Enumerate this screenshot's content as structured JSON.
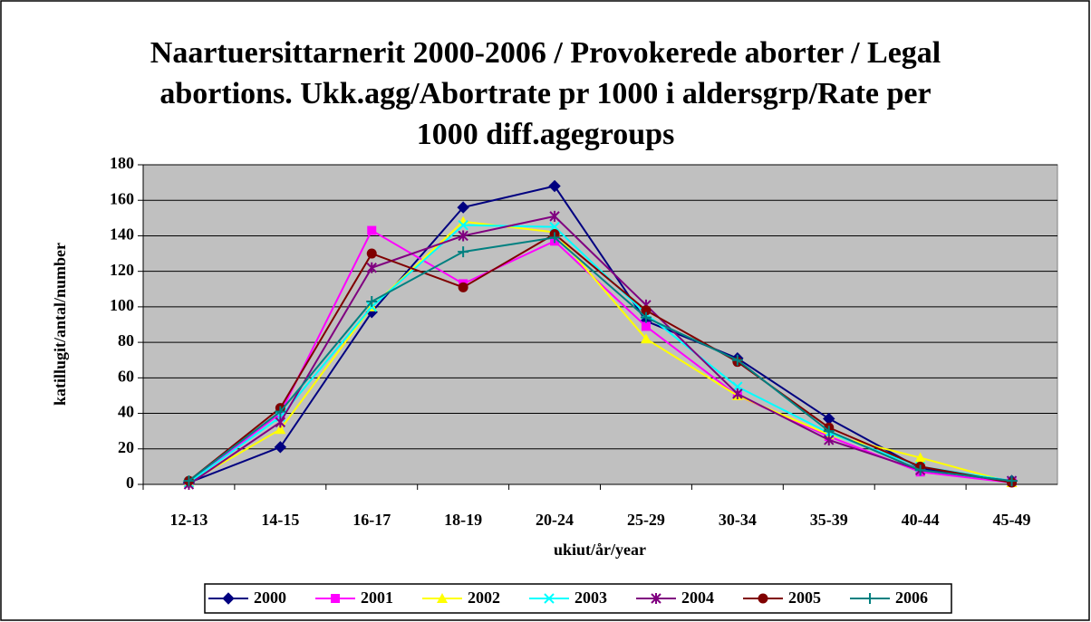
{
  "chart_data": {
    "type": "line",
    "title": "Naartuersittarnerit 2000-2006 / Provokerede aborter / Legal abortions. Ukk.agg/Abortrate pr 1000 i aldersgrp/Rate per 1000 diff.agegroups",
    "xlabel": "ukiut/år/year",
    "ylabel": "katillugit/antal/number",
    "categories": [
      "12-13",
      "14-15",
      "16-17",
      "18-19",
      "20-24",
      "25-29",
      "30-34",
      "35-39",
      "40-44",
      "45-49"
    ],
    "ylim": [
      0,
      180
    ],
    "yticks": [
      0,
      20,
      40,
      60,
      80,
      100,
      120,
      140,
      160,
      180
    ],
    "grid": true,
    "legend": "bottom",
    "series": [
      {
        "name": "2000",
        "color": "#000080",
        "marker": "diamond",
        "values": [
          1,
          21,
          97,
          156,
          168,
          92,
          71,
          37,
          9,
          2
        ]
      },
      {
        "name": "2001",
        "color": "#ff00ff",
        "marker": "square",
        "values": [
          1,
          40,
          143,
          113,
          137,
          89,
          50,
          27,
          7,
          1
        ]
      },
      {
        "name": "2002",
        "color": "#ffff00",
        "marker": "triangle",
        "values": [
          1,
          31,
          100,
          148,
          142,
          82,
          50,
          28,
          15,
          1
        ]
      },
      {
        "name": "2003",
        "color": "#00ffff",
        "marker": "x",
        "values": [
          1,
          38,
          100,
          146,
          145,
          96,
          55,
          29,
          10,
          2
        ]
      },
      {
        "name": "2004",
        "color": "#800080",
        "marker": "star",
        "values": [
          0,
          35,
          122,
          140,
          151,
          101,
          51,
          25,
          8,
          2
        ]
      },
      {
        "name": "2005",
        "color": "#800000",
        "marker": "circle",
        "values": [
          2,
          43,
          130,
          111,
          141,
          98,
          69,
          32,
          10,
          1
        ]
      },
      {
        "name": "2006",
        "color": "#008080",
        "marker": "plus",
        "values": [
          2,
          41,
          103,
          131,
          139,
          94,
          70,
          30,
          8,
          2
        ]
      }
    ]
  }
}
